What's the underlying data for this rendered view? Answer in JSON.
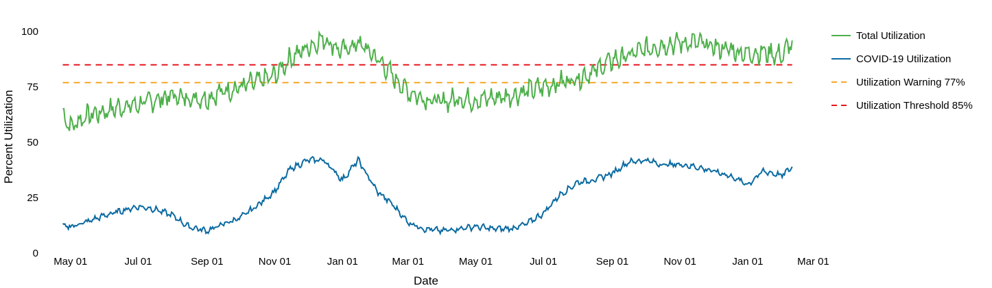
{
  "chart_data": {
    "type": "line",
    "xlabel": "Date",
    "ylabel": "Percent Utilization",
    "ylim": [
      0,
      105
    ],
    "y_ticks": [
      0,
      25,
      50,
      75,
      100
    ],
    "x_ticks": [
      {
        "date": "2020-05-01",
        "label": "May 01"
      },
      {
        "date": "2020-07-01",
        "label": "Jul 01"
      },
      {
        "date": "2020-09-01",
        "label": "Sep 01"
      },
      {
        "date": "2020-11-01",
        "label": "Nov 01"
      },
      {
        "date": "2021-01-01",
        "label": "Jan 01"
      },
      {
        "date": "2021-03-01",
        "label": "Mar 01"
      },
      {
        "date": "2021-05-01",
        "label": "May 01"
      },
      {
        "date": "2021-07-01",
        "label": "Jul 01"
      },
      {
        "date": "2021-09-01",
        "label": "Sep 01"
      },
      {
        "date": "2021-11-01",
        "label": "Nov 01"
      },
      {
        "date": "2022-01-01",
        "label": "Jan 01"
      },
      {
        "date": "2022-03-01",
        "label": "Mar 01"
      }
    ],
    "xlim": [
      "2020-04-20",
      "2022-03-10"
    ],
    "grid": false,
    "legend_position": "right",
    "series": [
      {
        "name": "Total Utilization",
        "color": "#4daf4a",
        "style": "solid",
        "x": [
          "2020-04-24",
          "2020-05-01",
          "2020-05-15",
          "2020-06-01",
          "2020-06-15",
          "2020-07-01",
          "2020-07-15",
          "2020-08-01",
          "2020-08-15",
          "2020-09-01",
          "2020-09-15",
          "2020-10-01",
          "2020-10-15",
          "2020-11-01",
          "2020-11-15",
          "2020-12-01",
          "2020-12-15",
          "2021-01-01",
          "2021-01-15",
          "2021-02-01",
          "2021-02-15",
          "2021-03-01",
          "2021-03-15",
          "2021-04-01",
          "2021-04-15",
          "2021-05-01",
          "2021-05-15",
          "2021-06-01",
          "2021-06-15",
          "2021-07-01",
          "2021-07-15",
          "2021-08-01",
          "2021-08-15",
          "2021-09-01",
          "2021-09-15",
          "2021-10-01",
          "2021-10-15",
          "2021-11-01",
          "2021-11-15",
          "2021-12-01",
          "2021-12-15",
          "2022-01-01",
          "2022-01-15",
          "2022-02-01",
          "2022-02-10"
        ],
        "values": [
          63,
          57,
          62,
          64,
          66,
          67,
          69,
          71,
          70,
          70,
          73,
          75,
          77,
          80,
          88,
          93,
          97,
          91,
          95,
          88,
          80,
          73,
          70,
          68,
          70,
          69,
          70,
          71,
          73,
          75,
          77,
          79,
          82,
          87,
          89,
          92,
          94,
          95,
          95,
          93,
          92,
          90,
          91,
          89,
          96
        ]
      },
      {
        "name": "COVID-19 Utilization",
        "color": "#0a6aa1",
        "style": "solid",
        "x": [
          "2020-04-24",
          "2020-05-01",
          "2020-05-15",
          "2020-06-01",
          "2020-06-15",
          "2020-07-01",
          "2020-07-15",
          "2020-08-01",
          "2020-08-15",
          "2020-09-01",
          "2020-09-15",
          "2020-10-01",
          "2020-10-15",
          "2020-11-01",
          "2020-11-15",
          "2020-12-01",
          "2020-12-15",
          "2021-01-01",
          "2021-01-15",
          "2021-02-01",
          "2021-02-15",
          "2021-03-01",
          "2021-03-15",
          "2021-04-01",
          "2021-04-15",
          "2021-05-01",
          "2021-05-15",
          "2021-06-01",
          "2021-06-15",
          "2021-07-01",
          "2021-07-15",
          "2021-08-01",
          "2021-08-15",
          "2021-09-01",
          "2021-09-15",
          "2021-10-01",
          "2021-10-15",
          "2021-11-01",
          "2021-11-15",
          "2021-12-01",
          "2021-12-15",
          "2022-01-01",
          "2022-01-15",
          "2022-02-01",
          "2022-02-10"
        ],
        "values": [
          12,
          12,
          14,
          17,
          19,
          21,
          20,
          17,
          12,
          10,
          13,
          16,
          21,
          28,
          38,
          42,
          42,
          33,
          42,
          28,
          22,
          14,
          11,
          10,
          11,
          12,
          11,
          11,
          13,
          18,
          26,
          32,
          33,
          36,
          41,
          42,
          40,
          40,
          39,
          37,
          35,
          31,
          37,
          35,
          39
        ]
      },
      {
        "name": "Utilization Warning 77%",
        "color": "#f5a623",
        "style": "dashed",
        "x": [
          "2020-04-24",
          "2022-02-10"
        ],
        "values": [
          77,
          77
        ]
      },
      {
        "name": "Utilization Threshold 85%",
        "color": "#e8131b",
        "style": "dashed",
        "x": [
          "2020-04-24",
          "2022-02-10"
        ],
        "values": [
          85,
          85
        ]
      }
    ]
  }
}
